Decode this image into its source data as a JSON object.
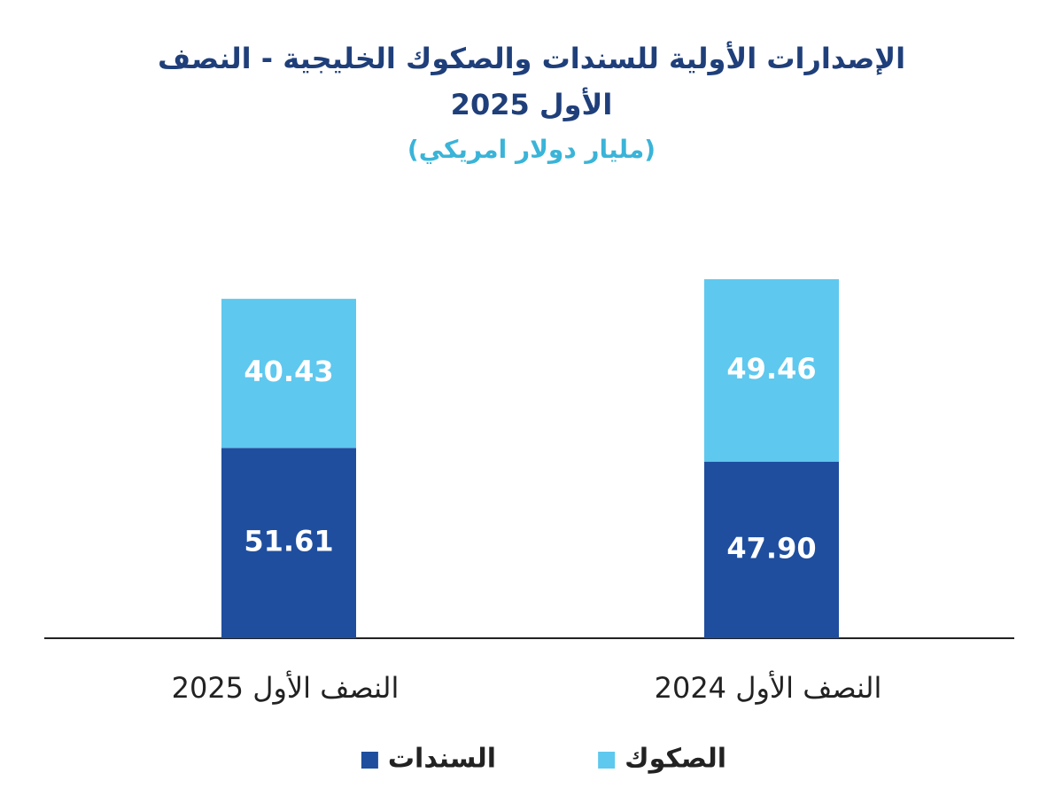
{
  "chart_data": {
    "type": "stacked-bar",
    "title": "الإصدارات الأولية للسندات والصكوك الخليجية - النصف الأول 2025",
    "subtitle": "(مليار دولار امريكي)",
    "categories": [
      "النصف الأول 2024",
      "النصف الأول 2025"
    ],
    "series": [
      {
        "name": "السندات",
        "color": "#1f4e9f",
        "values": [
          47.9,
          51.61
        ],
        "value_labels": [
          "47.90",
          "51.61"
        ]
      },
      {
        "name": "الصكوك",
        "color": "#5ec8ef",
        "values": [
          49.46,
          40.43
        ]
      }
    ]
  }
}
